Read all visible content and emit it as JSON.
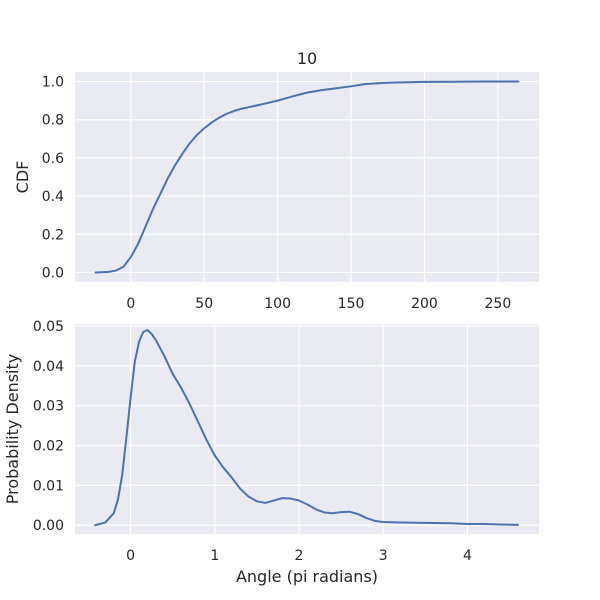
{
  "chart_data": [
    {
      "type": "line",
      "title": "10",
      "xlabel": "",
      "ylabel": "CDF",
      "xlim": [
        -38,
        278
      ],
      "ylim": [
        -0.05,
        1.05
      ],
      "xticks": [
        "0",
        "50",
        "100",
        "150",
        "200",
        "250"
      ],
      "xtick_values": [
        0,
        50,
        100,
        150,
        200,
        250
      ],
      "yticks": [
        "0.0",
        "0.2",
        "0.4",
        "0.6",
        "0.8",
        "1.0"
      ],
      "ytick_values": [
        0,
        0.2,
        0.4,
        0.6,
        0.8,
        1.0
      ],
      "grid": true,
      "series": [
        {
          "color": "#4c72b0",
          "x": [
            -24,
            -15,
            -10,
            -5,
            0,
            5,
            10,
            15,
            20,
            25,
            30,
            35,
            40,
            45,
            50,
            55,
            60,
            65,
            70,
            75,
            80,
            90,
            100,
            110,
            120,
            130,
            140,
            150,
            160,
            170,
            180,
            200,
            220,
            240,
            264
          ],
          "y": [
            0.0,
            0.003,
            0.01,
            0.03,
            0.08,
            0.15,
            0.24,
            0.33,
            0.41,
            0.49,
            0.56,
            0.62,
            0.675,
            0.72,
            0.755,
            0.785,
            0.81,
            0.83,
            0.845,
            0.857,
            0.865,
            0.882,
            0.9,
            0.922,
            0.942,
            0.955,
            0.965,
            0.975,
            0.987,
            0.992,
            0.995,
            0.998,
            0.999,
            1.0,
            1.0
          ]
        }
      ]
    },
    {
      "type": "line",
      "title": "",
      "xlabel": "Angle (pi radians)",
      "ylabel": "Probability Density",
      "xlim": [
        -0.66,
        4.85
      ],
      "ylim": [
        -0.0022,
        0.0505
      ],
      "xticks": [
        "0",
        "1",
        "2",
        "3",
        "4"
      ],
      "xtick_values": [
        0,
        1,
        2,
        3,
        4
      ],
      "yticks": [
        "0.00",
        "0.01",
        "0.02",
        "0.03",
        "0.04",
        "0.05"
      ],
      "ytick_values": [
        0,
        0.01,
        0.02,
        0.03,
        0.04,
        0.05
      ],
      "grid": true,
      "series": [
        {
          "color": "#4c72b0",
          "x": [
            -0.42,
            -0.3,
            -0.2,
            -0.15,
            -0.1,
            -0.05,
            0.0,
            0.05,
            0.1,
            0.15,
            0.2,
            0.25,
            0.3,
            0.35,
            0.4,
            0.5,
            0.6,
            0.7,
            0.8,
            0.9,
            1.0,
            1.1,
            1.2,
            1.3,
            1.4,
            1.5,
            1.6,
            1.7,
            1.8,
            1.9,
            2.0,
            2.1,
            2.2,
            2.3,
            2.4,
            2.5,
            2.6,
            2.7,
            2.8,
            2.9,
            3.0,
            3.2,
            3.5,
            3.8,
            4.0,
            4.2,
            4.4,
            4.6
          ],
          "y": [
            0.0,
            0.0007,
            0.003,
            0.0065,
            0.0125,
            0.022,
            0.032,
            0.041,
            0.046,
            0.0485,
            0.049,
            0.048,
            0.0465,
            0.0445,
            0.0425,
            0.038,
            0.0345,
            0.0305,
            0.026,
            0.0215,
            0.0175,
            0.0145,
            0.012,
            0.0092,
            0.0072,
            0.006,
            0.0056,
            0.0062,
            0.0068,
            0.0067,
            0.0062,
            0.0052,
            0.004,
            0.0032,
            0.003,
            0.0033,
            0.0034,
            0.0028,
            0.0018,
            0.0011,
            0.0008,
            0.0007,
            0.0006,
            0.0005,
            0.0003,
            0.0003,
            0.0002,
            0.0001
          ]
        }
      ]
    }
  ]
}
